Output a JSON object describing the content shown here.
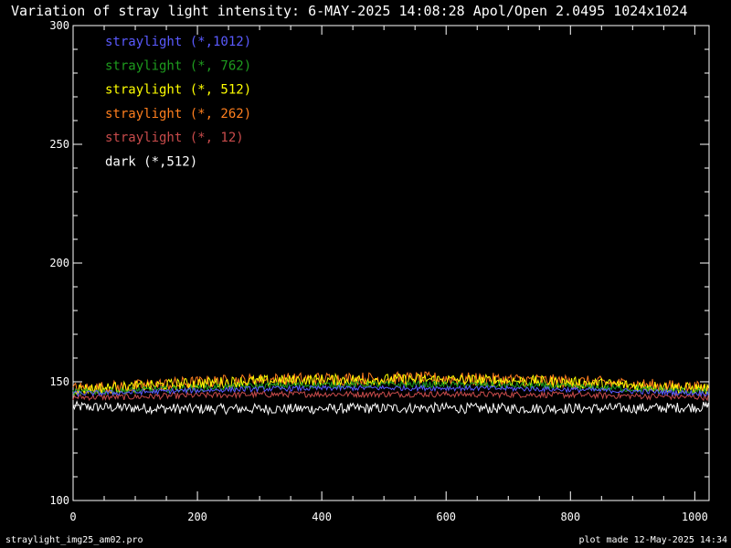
{
  "title": "Variation of stray light intensity:  6-MAY-2025 14:08:28   Apol/Open   2.0495 1024x1024",
  "footer_left": "straylight_img25_am02.pro",
  "footer_right": "plot made 12-May-2025 14:34",
  "chart_data": {
    "type": "line",
    "xlim": [
      0,
      1023
    ],
    "ylim": [
      100,
      300
    ],
    "x_ticks": [
      "0",
      "200",
      "400",
      "600",
      "800",
      "1000"
    ],
    "y_ticks": [
      "100",
      "150",
      "200",
      "250",
      "300"
    ],
    "legend_position": "top-left",
    "series": [
      {
        "name": "dark (*,512)",
        "color": "#ffffff",
        "values": [
          139.5,
          139.0,
          138.6,
          138.6,
          138.6,
          138.8,
          139.0,
          138.8,
          138.8,
          138.8,
          138.9,
          139.5
        ]
      },
      {
        "name": "straylight (*,  12)",
        "color": "#c84b4b",
        "values": [
          143.5,
          143.6,
          144.2,
          144.6,
          144.8,
          144.8,
          144.8,
          144.7,
          144.6,
          144.3,
          143.9,
          143.5
        ]
      },
      {
        "name": "straylight (*, 262)",
        "color": "#ff7f1e",
        "values": [
          147.0,
          148.0,
          149.5,
          150.6,
          151.2,
          151.3,
          151.4,
          151.1,
          150.6,
          149.7,
          148.5,
          147.2
        ]
      },
      {
        "name": "straylight (*, 512)",
        "color": "#ffff00",
        "values": [
          146.8,
          147.8,
          149.2,
          150.2,
          150.7,
          150.9,
          151.0,
          150.7,
          150.2,
          149.3,
          148.1,
          146.9
        ]
      },
      {
        "name": "straylight (*, 762)",
        "color": "#1e9c1e",
        "values": [
          145.6,
          146.3,
          147.3,
          148.1,
          148.6,
          148.8,
          148.9,
          148.7,
          148.3,
          147.6,
          146.7,
          145.8
        ]
      },
      {
        "name": "straylight (*,1012)",
        "color": "#5a5aff",
        "values": [
          145.0,
          145.5,
          146.3,
          146.9,
          147.2,
          147.4,
          147.4,
          147.3,
          147.0,
          146.5,
          145.8,
          145.1
        ]
      }
    ],
    "x_samples": [
      0,
      93,
      186,
      279,
      372,
      465,
      558,
      651,
      744,
      837,
      930,
      1023
    ],
    "legend_order": [
      5,
      4,
      3,
      2,
      1,
      0
    ]
  }
}
